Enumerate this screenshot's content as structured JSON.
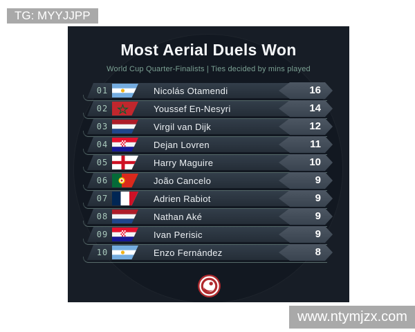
{
  "watermarks": {
    "tg": "TG: MYYJJPP",
    "site": "www.ntymjzx.com"
  },
  "card": {
    "title": "Most Aerial Duels Won",
    "subtitle": "World Cup Quarter-Finalists | Ties decided by mins played"
  },
  "table": {
    "rows": [
      {
        "rank": "01",
        "country": "argentina",
        "player": "Nicolás Otamendi",
        "value": "16"
      },
      {
        "rank": "02",
        "country": "morocco",
        "player": "Youssef En-Nesyri",
        "value": "14"
      },
      {
        "rank": "03",
        "country": "netherlands",
        "player": "Virgil van Dijk",
        "value": "12"
      },
      {
        "rank": "04",
        "country": "croatia",
        "player": "Dejan Lovren",
        "value": "11"
      },
      {
        "rank": "05",
        "country": "england",
        "player": "Harry Maguire",
        "value": "10"
      },
      {
        "rank": "06",
        "country": "portugal",
        "player": "João Cancelo",
        "value": "9"
      },
      {
        "rank": "07",
        "country": "france",
        "player": "Adrien Rabiot",
        "value": "9"
      },
      {
        "rank": "08",
        "country": "netherlands",
        "player": "Nathan Aké",
        "value": "9"
      },
      {
        "rank": "09",
        "country": "croatia",
        "player": "Ivan Perisic",
        "value": "9"
      },
      {
        "rank": "10",
        "country": "argentina",
        "player": "Enzo Fernández",
        "value": "8"
      }
    ]
  },
  "logo": {
    "name": "publisher-crest-logo",
    "color": "#b02a2e"
  },
  "colors": {
    "card_bg": "#171d26",
    "row_bar": "#2c3642",
    "rank_mint": "#a9c9bc",
    "subtitle_teal": "#7ba093",
    "banner_gray": "#a9a9a9",
    "value_badge": "#434d5a",
    "logo_red": "#b02a2e"
  },
  "chart_data": {
    "type": "table",
    "title": "Most Aerial Duels Won",
    "subtitle": "World Cup Quarter-Finalists | Ties decided by mins played",
    "columns": [
      "rank",
      "country",
      "player",
      "aerial_duels_won"
    ],
    "rows": [
      [
        "01",
        "Argentina",
        "Nicolás Otamendi",
        16
      ],
      [
        "02",
        "Morocco",
        "Youssef En-Nesyri",
        14
      ],
      [
        "03",
        "Netherlands",
        "Virgil van Dijk",
        12
      ],
      [
        "04",
        "Croatia",
        "Dejan Lovren",
        11
      ],
      [
        "05",
        "England",
        "Harry Maguire",
        10
      ],
      [
        "06",
        "Portugal",
        "João Cancelo",
        9
      ],
      [
        "07",
        "France",
        "Adrien Rabiot",
        9
      ],
      [
        "08",
        "Netherlands",
        "Nathan Aké",
        9
      ],
      [
        "09",
        "Croatia",
        "Ivan Perisic",
        9
      ],
      [
        "10",
        "Argentina",
        "Enzo Fernández",
        8
      ]
    ]
  }
}
